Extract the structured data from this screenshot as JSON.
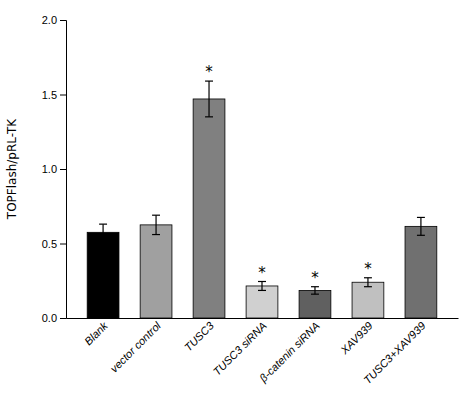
{
  "chart_data": {
    "type": "bar",
    "categories": [
      "Blank",
      "vector control",
      "TUSC3",
      "TUSC3 siRNA",
      "β-catenin siRNA",
      "XAV939",
      "TUSC3+XAV939"
    ],
    "values": [
      0.575,
      0.625,
      1.47,
      0.215,
      0.185,
      0.24,
      0.615
    ],
    "errors": [
      0.055,
      0.065,
      0.12,
      0.03,
      0.025,
      0.03,
      0.06
    ],
    "colors": [
      "#000000",
      "#a0a0a0",
      "#808080",
      "#d0d0d0",
      "#606060",
      "#c0c0c0",
      "#707070"
    ],
    "y_label": "TOPFlash/pRL-TK",
    "ylim": [
      0.0,
      2.0
    ],
    "yticks": [
      {
        "value": 0.0,
        "label": "0.0"
      },
      0.5,
      {
        "value": 1.0,
        "label": "1.0"
      },
      1.5,
      {
        "value": 2.0,
        "label": "2.0"
      }
    ],
    "annotations": [
      {
        "text": "*",
        "x": "TUSC3"
      },
      {
        "text": "*",
        "x": "TUSC3 siRNA"
      },
      {
        "text": "*",
        "x": "β-catenin siRNA"
      },
      {
        "text": "*",
        "x": "XAV939"
      }
    ],
    "grid": false
  }
}
